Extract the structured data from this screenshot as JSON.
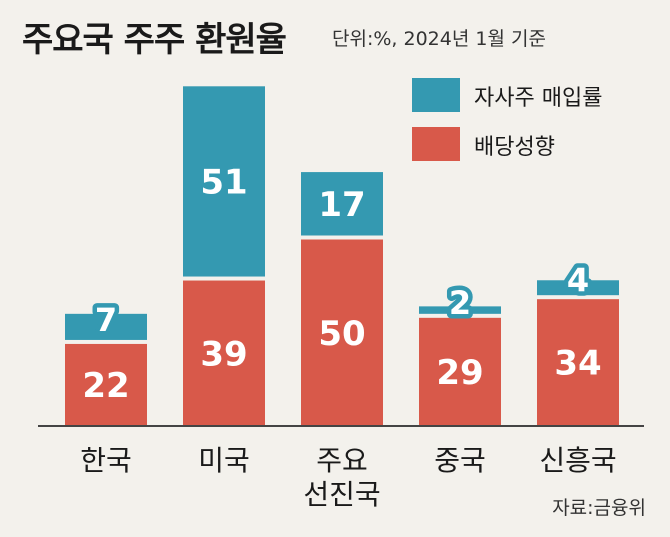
{
  "header": {
    "title": "주요국 주주 환원율",
    "subtitle": "단위:%, 2024년 1월 기준"
  },
  "source": "자료:금융위",
  "colors": {
    "background": "#f3f1ec",
    "buyback": "#3499b1",
    "dividend": "#d8594a",
    "axis": "#444444",
    "value_text": "#ffffff",
    "category_text": "#1a1a1a"
  },
  "legend": {
    "position": "top-right",
    "items": [
      {
        "label": "자사주 매입률",
        "color": "#3499b1"
      },
      {
        "label": "배당성향",
        "color": "#d8594a"
      }
    ]
  },
  "chart_data": {
    "type": "bar",
    "stacked": true,
    "categories": [
      [
        "한국"
      ],
      [
        "미국"
      ],
      [
        "주요",
        "선진국"
      ],
      [
        "중국"
      ],
      [
        "신흥국"
      ]
    ],
    "series": [
      {
        "name": "배당성향",
        "values": [
          22,
          39,
          50,
          29,
          34
        ]
      },
      {
        "name": "자사주 매입률",
        "values": [
          7,
          51,
          17,
          2,
          4
        ]
      }
    ],
    "ylim": [
      0,
      90
    ],
    "grid": false
  }
}
